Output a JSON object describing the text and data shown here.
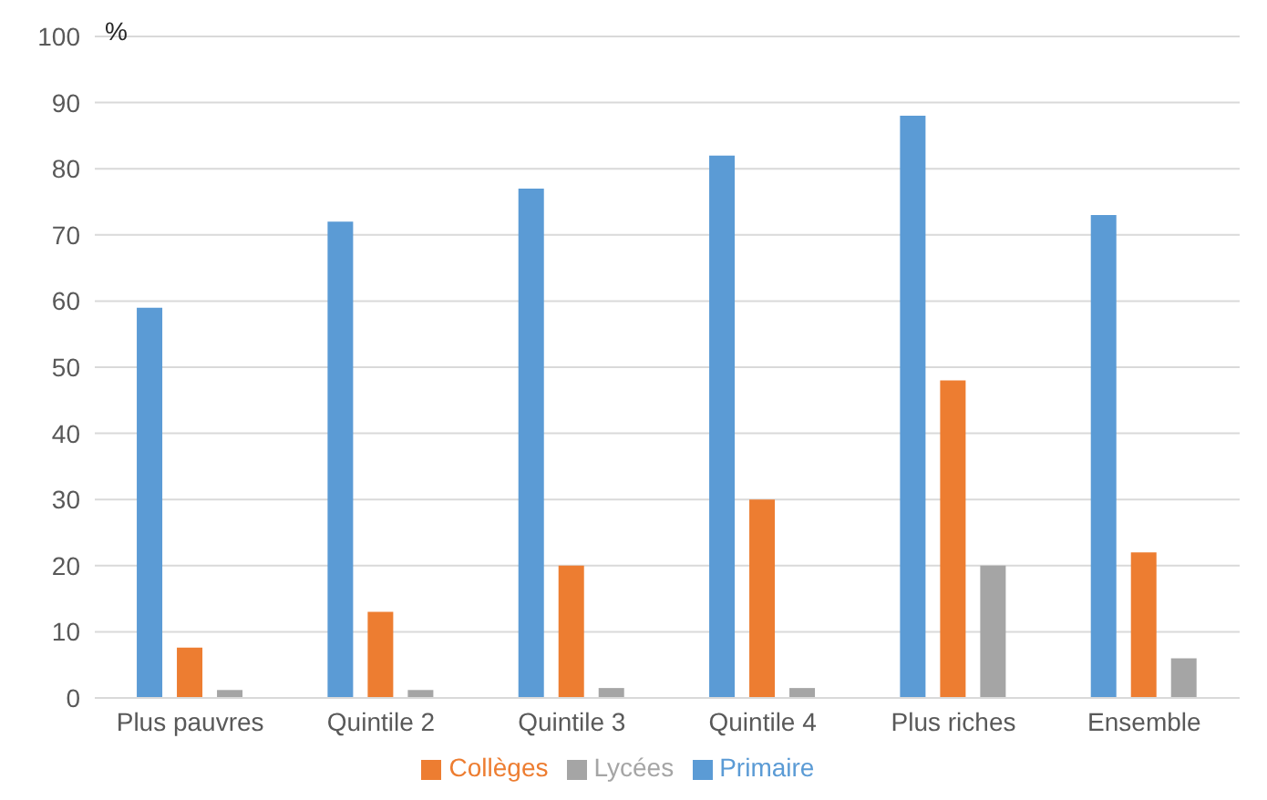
{
  "chart_data": {
    "type": "bar",
    "ylabel": "%",
    "categories": [
      "Plus pauvres",
      "Quintile 2",
      "Quintile 3",
      "Quintile 4",
      "Plus riches",
      "Ensemble"
    ],
    "series": [
      {
        "name": "Primaire",
        "color": "#5b9bd5",
        "values": [
          59,
          72,
          77,
          82,
          88,
          73
        ]
      },
      {
        "name": "Collèges",
        "color": "#ed7d31",
        "values": [
          7.6,
          13,
          20,
          30,
          48,
          22
        ]
      },
      {
        "name": "Lycées",
        "color": "#a5a5a5",
        "values": [
          1.2,
          1.2,
          1.5,
          1.5,
          20,
          6
        ]
      }
    ],
    "ylim": [
      0,
      100
    ],
    "yticks": [
      0,
      10,
      20,
      30,
      40,
      50,
      60,
      70,
      80,
      90,
      100
    ],
    "grid": "y",
    "legend": "bottom"
  }
}
